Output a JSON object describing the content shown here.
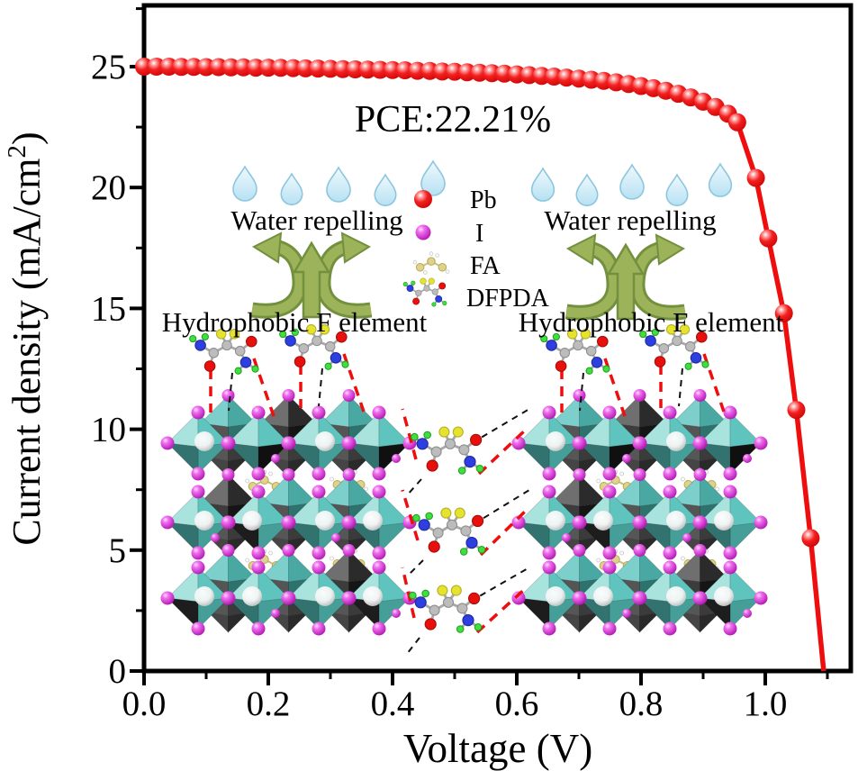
{
  "annotation": {
    "pce": "PCE:22.21%"
  },
  "axes": {
    "xlabel": "Voltage (V)",
    "ylabel_prefix": "Current density (mA/cm",
    "ylabel_sup": "2",
    "ylabel_suffix": ")"
  },
  "callouts": {
    "left": {
      "water": "Water repelling",
      "hydro": "Hydrophobic F element"
    },
    "right": {
      "water": "Water repelling",
      "hydro": "Hydrophobic F element"
    }
  },
  "legend": {
    "items": [
      {
        "icon": "pb-sphere-icon",
        "label": "Pb"
      },
      {
        "icon": "iodine-sphere-icon",
        "label": "I"
      },
      {
        "icon": "fa-molecule-icon",
        "label": "FA"
      },
      {
        "icon": "dfpda-molecule-icon",
        "label": "DFPDA"
      }
    ]
  },
  "chart_data": {
    "type": "line",
    "title": "PCE:22.21%",
    "xlabel": "Voltage (V)",
    "ylabel": "Current density (mA/cm2)",
    "xlim": [
      0,
      1.14
    ],
    "ylim": [
      0,
      27.5
    ],
    "grid": false,
    "legend_position": "inside-center",
    "x_ticks": [
      0,
      0.2,
      0.4,
      0.6,
      0.8,
      1.0
    ],
    "x_tick_labels": [
      "0.0",
      "0.2",
      "0.4",
      "0.6",
      "0.8",
      "1.0"
    ],
    "x_minor_ticks": [
      0.1,
      0.3,
      0.5,
      0.7,
      0.9,
      1.1
    ],
    "y_ticks": [
      0,
      5,
      10,
      15,
      20,
      25
    ],
    "y_tick_labels": [
      "0",
      "5",
      "10",
      "15",
      "20",
      "25"
    ],
    "y_minor_ticks": [
      2.5,
      7.5,
      12.5,
      17.5,
      22.5,
      27.4
    ],
    "series": [
      {
        "name": "J-V curve",
        "color": "#ee0e0e",
        "marker": "sphere",
        "x": [
          0.0,
          0.02,
          0.04,
          0.06,
          0.08,
          0.1,
          0.12,
          0.14,
          0.16,
          0.18,
          0.2,
          0.22,
          0.24,
          0.26,
          0.28,
          0.3,
          0.32,
          0.34,
          0.36,
          0.38,
          0.4,
          0.42,
          0.44,
          0.46,
          0.48,
          0.5,
          0.52,
          0.54,
          0.56,
          0.58,
          0.6,
          0.62,
          0.64,
          0.66,
          0.68,
          0.7,
          0.72,
          0.74,
          0.76,
          0.78,
          0.8,
          0.82,
          0.84,
          0.86,
          0.88,
          0.9,
          0.92,
          0.94,
          0.955,
          0.985,
          1.005,
          1.03,
          1.05,
          1.073,
          1.094
        ],
        "y": [
          25.0,
          25.0,
          25.0,
          24.99,
          24.99,
          24.98,
          24.98,
          24.97,
          24.97,
          24.96,
          24.96,
          24.95,
          24.94,
          24.93,
          24.92,
          24.91,
          24.9,
          24.89,
          24.88,
          24.87,
          24.86,
          24.85,
          24.83,
          24.82,
          24.8,
          24.79,
          24.77,
          24.75,
          24.73,
          24.71,
          24.68,
          24.65,
          24.62,
          24.59,
          24.55,
          24.51,
          24.46,
          24.41,
          24.35,
          24.28,
          24.2,
          24.11,
          24.0,
          23.88,
          23.73,
          23.55,
          23.33,
          23.05,
          22.7,
          20.4,
          17.9,
          14.8,
          10.8,
          5.5,
          0.0
        ]
      }
    ],
    "derived_metrics": {
      "jsc_mA_cm2": 25.0,
      "voc_V": 1.094
    }
  },
  "colors": {
    "curve": "#ee0e0e",
    "droplet_fill": "#cdeaf8",
    "droplet_stroke": "#8cc7de",
    "arrow_fill": "#9cb35a",
    "arrow_stroke": "#72903e",
    "octahedron_teal": "#5fc4bd",
    "iodine_magenta": "#cc2ecc",
    "axis": "#000000"
  }
}
